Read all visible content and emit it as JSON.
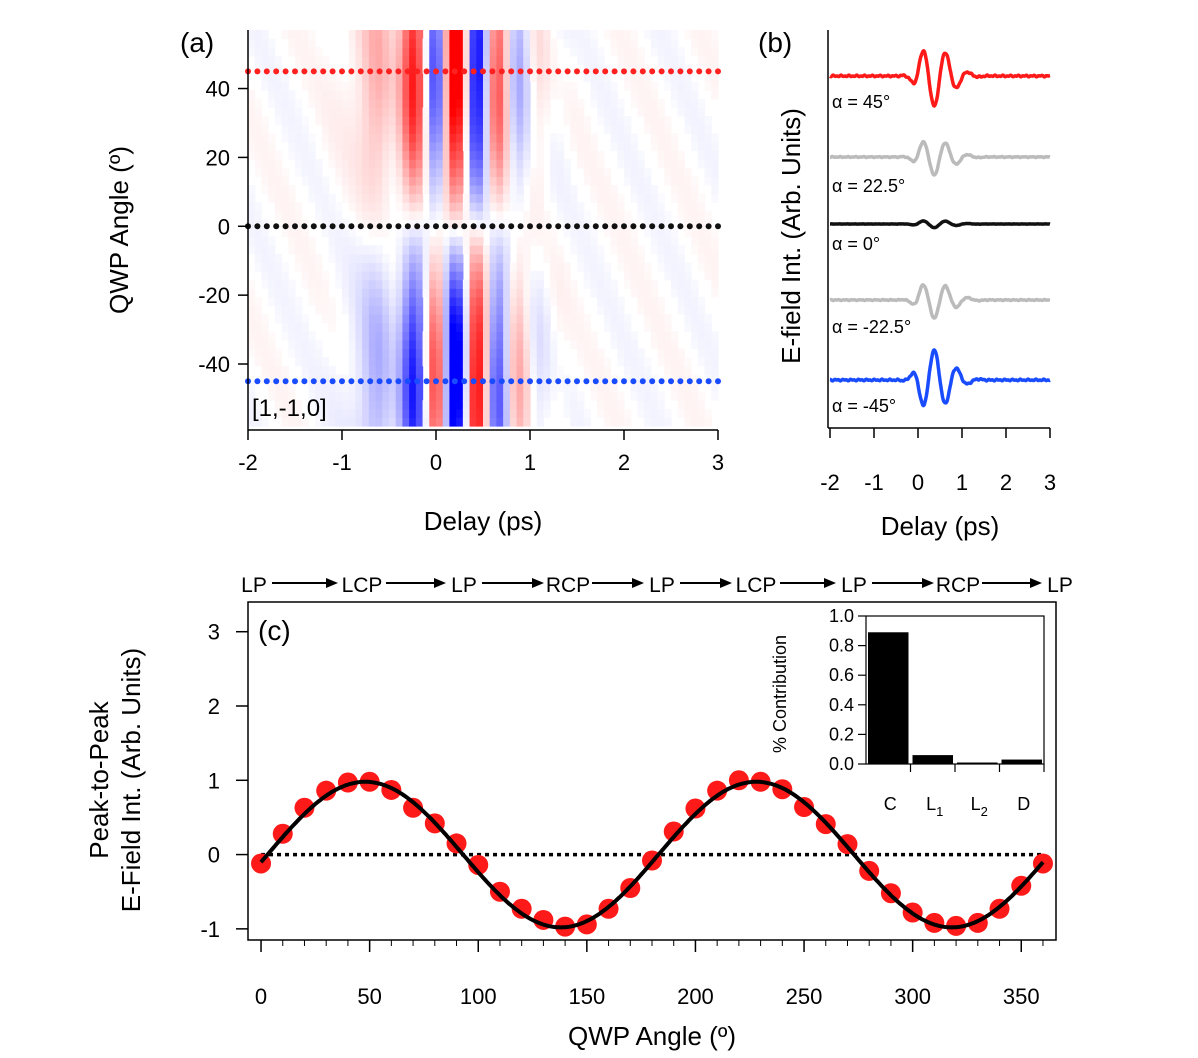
{
  "panel_a": {
    "label": "(a)",
    "corner_text": "[1,-1,0]",
    "xlabel": "Delay (ps)",
    "ylabel": "QWP Angle (º)",
    "xticks": [
      -2,
      -1,
      0,
      1,
      2,
      3
    ],
    "yticks": [
      40,
      20,
      0,
      -20,
      -40
    ],
    "xlim": [
      -2,
      3
    ],
    "ylim": [
      -58,
      57
    ],
    "marker_lines": [
      {
        "angle": 45,
        "color": "#ff2020"
      },
      {
        "angle": 0,
        "color": "#111111"
      },
      {
        "angle": -45,
        "color": "#1a4cff"
      }
    ]
  },
  "panel_b": {
    "label": "(b)",
    "xlabel": "Delay (ps)",
    "ylabel": "E-field Int. (Arb. Units)",
    "xticks": [
      -2,
      -1,
      0,
      1,
      2,
      3
    ],
    "xlim": [
      -2,
      3
    ],
    "traces": [
      {
        "label": "α = 45°",
        "amplitude": -1.0,
        "color": "#ff1a1a"
      },
      {
        "label": "α = 22.5°",
        "amplitude": -0.6,
        "color": "#bbbbbb"
      },
      {
        "label": "α = 0°",
        "amplitude": -0.12,
        "color": "#111111"
      },
      {
        "label": "α = -22.5°",
        "amplitude": -0.6,
        "color": "#bbbbbb"
      },
      {
        "label": "α = -45°",
        "amplitude": 1.0,
        "color": "#1a4cff"
      }
    ]
  },
  "polarization_sequence": [
    "LP",
    "LCP",
    "LP",
    "RCP",
    "LP",
    "LCP",
    "LP",
    "RCP",
    "LP"
  ],
  "panel_c": {
    "label": "(c)",
    "xlabel": "QWP Angle (º)",
    "ylabel_line1": "Peak-to-Peak",
    "ylabel_line2": "E-Field Int. (Arb. Units)",
    "xticks": [
      0,
      50,
      100,
      150,
      200,
      250,
      300,
      350
    ],
    "yticks": [
      3,
      2,
      1,
      0,
      -1
    ],
    "xlim": [
      -6,
      366
    ],
    "ylim": [
      -1.15,
      3.4
    ],
    "marker_color": "#ff1a1a",
    "fit_color": "#000000"
  },
  "inset": {
    "ylabel": "% Contribution",
    "yticks": [
      "1.0",
      "0.8",
      "0.6",
      "0.4",
      "0.2",
      "0.0"
    ],
    "ylim": [
      0,
      1.0
    ]
  },
  "chart_data": [
    {
      "type": "heatmap",
      "title": "(a)",
      "xlabel": "Delay (ps)",
      "ylabel": "QWP Angle (º)",
      "xlim": [
        -2,
        3
      ],
      "ylim": [
        -58,
        57
      ],
      "colormap": "red-white-blue, sign ∝ sin(2·angle)",
      "annotation": "[1,-1,0]",
      "bands": [
        {
          "delay": 0.0,
          "polarity_at_45deg": "blue"
        },
        {
          "delay": 0.3,
          "polarity_at_45deg": "red"
        },
        {
          "delay": 0.55,
          "polarity_at_45deg": "blue"
        },
        {
          "delay": 0.75,
          "polarity_at_45deg": "red"
        },
        {
          "delay": 0.95,
          "polarity_at_45deg": "blue"
        }
      ],
      "dotted_lines_at_angle": [
        45,
        0,
        -45
      ]
    },
    {
      "type": "line",
      "title": "(b)",
      "xlabel": "Delay (ps)",
      "ylabel": "E-field Int. (Arb. Units)",
      "xlim": [
        -2,
        3
      ],
      "series": [
        {
          "name": "α = 45°",
          "relative_amplitude": -1.0
        },
        {
          "name": "α = 22.5°",
          "relative_amplitude": -0.6
        },
        {
          "name": "α = 0°",
          "relative_amplitude": -0.12
        },
        {
          "name": "α = -22.5°",
          "relative_amplitude": -0.6
        },
        {
          "name": "α = -45°",
          "relative_amplitude": 1.0
        }
      ]
    },
    {
      "type": "scatter",
      "title": "(c)",
      "xlabel": "QWP Angle (º)",
      "ylabel": "Peak-to-Peak E-Field Int. (Arb. Units)",
      "xlim": [
        -6,
        366
      ],
      "ylim": [
        -1.15,
        3.4
      ],
      "x": [
        0,
        10,
        20,
        30,
        40,
        50,
        60,
        70,
        80,
        90,
        100,
        110,
        120,
        130,
        140,
        150,
        160,
        170,
        180,
        190,
        200,
        210,
        220,
        230,
        240,
        250,
        260,
        270,
        280,
        290,
        300,
        310,
        320,
        330,
        340,
        350,
        360
      ],
      "series": [
        {
          "values": [
            -0.12,
            0.28,
            0.63,
            0.86,
            0.97,
            0.98,
            0.87,
            0.63,
            0.42,
            0.15,
            -0.14,
            -0.5,
            -0.73,
            -0.88,
            -0.97,
            -0.94,
            -0.73,
            -0.45,
            -0.08,
            0.31,
            0.62,
            0.86,
            1.0,
            0.98,
            0.88,
            0.64,
            0.41,
            0.14,
            -0.22,
            -0.52,
            -0.78,
            -0.92,
            -0.96,
            -0.92,
            -0.73,
            -0.42,
            -0.12
          ]
        },
        {
          "values": "fit ≈ 0.98·sin(2·(x − 3°))"
        }
      ],
      "reference_line": 0
    },
    {
      "type": "bar",
      "title": "inset",
      "ylabel": "% Contribution",
      "categories": [
        "C",
        "L1",
        "L2",
        "D"
      ],
      "values": [
        0.89,
        0.06,
        0.01,
        0.03
      ],
      "ylim": [
        0,
        1.0
      ]
    }
  ]
}
